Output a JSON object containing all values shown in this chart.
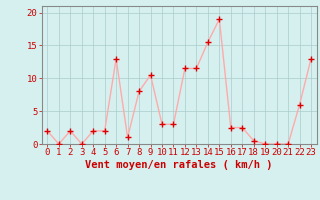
{
  "x": [
    0,
    1,
    2,
    3,
    4,
    5,
    6,
    7,
    8,
    9,
    10,
    11,
    12,
    13,
    14,
    15,
    16,
    17,
    18,
    19,
    20,
    21,
    22,
    23
  ],
  "y": [
    2,
    0,
    2,
    0,
    2,
    2,
    13,
    1,
    8,
    10.5,
    3,
    3,
    11.5,
    11.5,
    15.5,
    19,
    2.5,
    2.5,
    0.5,
    0,
    0,
    0,
    6,
    13
  ],
  "line_color": "#ffaaaa",
  "marker_color": "#dd0000",
  "bg_color": "#d6f0f0",
  "grid_color": "#aacccc",
  "xlabel": "Vent moyen/en rafales ( km/h )",
  "xlabel_color": "#cc0000",
  "tick_color": "#cc0000",
  "spine_color": "#888888",
  "ylim": [
    0,
    21
  ],
  "yticks": [
    0,
    5,
    10,
    15,
    20
  ],
  "xlim": [
    -0.5,
    23.5
  ],
  "xlabel_fontsize": 7.5,
  "tick_fontsize": 6.5
}
